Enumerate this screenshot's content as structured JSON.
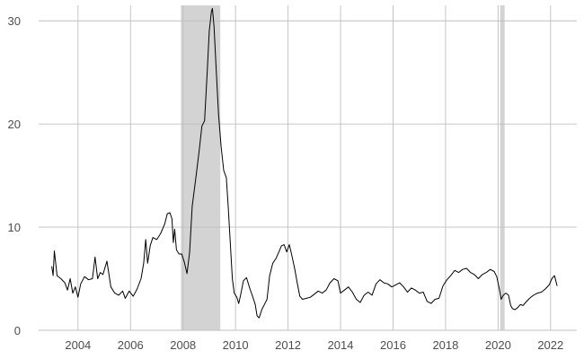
{
  "chart_data": {
    "type": "line",
    "title": "",
    "xlabel": "",
    "ylabel": "",
    "xlim": [
      2002.5,
      2023.0
    ],
    "ylim": [
      0,
      31.5
    ],
    "x_ticks": [
      2004,
      2006,
      2008,
      2010,
      2012,
      2014,
      2016,
      2018,
      2020,
      2022
    ],
    "x_tick_labels": [
      "2004",
      "2006",
      "2008",
      "2010",
      "2012",
      "2014",
      "2016",
      "2018",
      "2020",
      "2022"
    ],
    "y_ticks": [
      0,
      10,
      20,
      30
    ],
    "y_tick_labels": [
      "0",
      "10",
      "20",
      "30"
    ],
    "grid": true,
    "legend": "none",
    "colors": {
      "line": "#000000",
      "shading": "#d3d3d3",
      "grid": "#bfbfbf"
    },
    "shaded_periods": [
      {
        "start": 2007.92,
        "end": 2009.42
      },
      {
        "start": 2020.08,
        "end": 2020.25
      }
    ],
    "series": [
      {
        "values": [
          [
            2003.0,
            6.2
          ],
          [
            2003.05,
            5.3
          ],
          [
            2003.1,
            7.7
          ],
          [
            2003.2,
            5.3
          ],
          [
            2003.35,
            5.0
          ],
          [
            2003.5,
            4.6
          ],
          [
            2003.6,
            3.9
          ],
          [
            2003.7,
            5.0
          ],
          [
            2003.8,
            3.6
          ],
          [
            2003.9,
            4.2
          ],
          [
            2004.0,
            3.2
          ],
          [
            2004.1,
            4.5
          ],
          [
            2004.25,
            5.2
          ],
          [
            2004.4,
            4.9
          ],
          [
            2004.55,
            5.0
          ],
          [
            2004.65,
            7.1
          ],
          [
            2004.75,
            5.0
          ],
          [
            2004.85,
            5.6
          ],
          [
            2004.95,
            5.4
          ],
          [
            2005.1,
            6.7
          ],
          [
            2005.25,
            4.2
          ],
          [
            2005.4,
            3.6
          ],
          [
            2005.55,
            3.4
          ],
          [
            2005.7,
            3.8
          ],
          [
            2005.8,
            3.1
          ],
          [
            2005.95,
            3.8
          ],
          [
            2006.1,
            3.3
          ],
          [
            2006.25,
            4.0
          ],
          [
            2006.4,
            5.0
          ],
          [
            2006.5,
            6.5
          ],
          [
            2006.58,
            8.8
          ],
          [
            2006.65,
            6.5
          ],
          [
            2006.75,
            8.2
          ],
          [
            2006.85,
            9.0
          ],
          [
            2007.0,
            8.8
          ],
          [
            2007.15,
            9.4
          ],
          [
            2007.3,
            10.3
          ],
          [
            2007.4,
            11.3
          ],
          [
            2007.5,
            11.4
          ],
          [
            2007.58,
            10.8
          ],
          [
            2007.63,
            8.5
          ],
          [
            2007.68,
            9.8
          ],
          [
            2007.75,
            7.8
          ],
          [
            2007.85,
            7.4
          ],
          [
            2007.95,
            7.4
          ],
          [
            2008.05,
            6.6
          ],
          [
            2008.15,
            5.5
          ],
          [
            2008.25,
            7.5
          ],
          [
            2008.35,
            12.0
          ],
          [
            2008.5,
            15.0
          ],
          [
            2008.62,
            17.5
          ],
          [
            2008.72,
            19.8
          ],
          [
            2008.82,
            20.3
          ],
          [
            2008.92,
            25.0
          ],
          [
            2009.0,
            29.0
          ],
          [
            2009.08,
            30.9
          ],
          [
            2009.12,
            31.2
          ],
          [
            2009.18,
            29.5
          ],
          [
            2009.25,
            26.0
          ],
          [
            2009.35,
            21.0
          ],
          [
            2009.45,
            17.8
          ],
          [
            2009.55,
            15.5
          ],
          [
            2009.65,
            14.8
          ],
          [
            2009.72,
            12.0
          ],
          [
            2009.8,
            8.5
          ],
          [
            2009.88,
            5.0
          ],
          [
            2009.95,
            3.6
          ],
          [
            2010.05,
            3.2
          ],
          [
            2010.12,
            2.6
          ],
          [
            2010.2,
            3.5
          ],
          [
            2010.3,
            4.8
          ],
          [
            2010.42,
            5.1
          ],
          [
            2010.55,
            4.0
          ],
          [
            2010.65,
            3.3
          ],
          [
            2010.75,
            2.5
          ],
          [
            2010.82,
            1.4
          ],
          [
            2010.9,
            1.2
          ],
          [
            2011.0,
            2.0
          ],
          [
            2011.1,
            2.5
          ],
          [
            2011.2,
            3.0
          ],
          [
            2011.3,
            5.3
          ],
          [
            2011.42,
            6.5
          ],
          [
            2011.55,
            7.0
          ],
          [
            2011.65,
            7.6
          ],
          [
            2011.75,
            8.2
          ],
          [
            2011.85,
            8.3
          ],
          [
            2011.95,
            7.6
          ],
          [
            2012.05,
            8.3
          ],
          [
            2012.15,
            7.2
          ],
          [
            2012.25,
            6.0
          ],
          [
            2012.35,
            4.6
          ],
          [
            2012.45,
            3.3
          ],
          [
            2012.55,
            3.0
          ],
          [
            2012.7,
            3.1
          ],
          [
            2012.85,
            3.2
          ],
          [
            2013.0,
            3.5
          ],
          [
            2013.15,
            3.8
          ],
          [
            2013.3,
            3.6
          ],
          [
            2013.45,
            3.9
          ],
          [
            2013.6,
            4.6
          ],
          [
            2013.75,
            5.0
          ],
          [
            2013.9,
            4.8
          ],
          [
            2014.0,
            3.6
          ],
          [
            2014.15,
            3.9
          ],
          [
            2014.3,
            4.2
          ],
          [
            2014.45,
            3.7
          ],
          [
            2014.6,
            3.0
          ],
          [
            2014.75,
            2.7
          ],
          [
            2014.9,
            3.4
          ],
          [
            2015.05,
            3.7
          ],
          [
            2015.2,
            3.4
          ],
          [
            2015.35,
            4.5
          ],
          [
            2015.5,
            4.9
          ],
          [
            2015.65,
            4.6
          ],
          [
            2015.8,
            4.5
          ],
          [
            2015.95,
            4.2
          ],
          [
            2016.1,
            4.4
          ],
          [
            2016.25,
            4.6
          ],
          [
            2016.4,
            4.2
          ],
          [
            2016.55,
            3.7
          ],
          [
            2016.7,
            4.1
          ],
          [
            2016.85,
            3.9
          ],
          [
            2017.0,
            3.6
          ],
          [
            2017.15,
            3.7
          ],
          [
            2017.3,
            2.8
          ],
          [
            2017.45,
            2.6
          ],
          [
            2017.6,
            3.0
          ],
          [
            2017.75,
            3.1
          ],
          [
            2017.9,
            4.3
          ],
          [
            2018.05,
            4.9
          ],
          [
            2018.2,
            5.3
          ],
          [
            2018.35,
            5.8
          ],
          [
            2018.5,
            5.6
          ],
          [
            2018.65,
            5.9
          ],
          [
            2018.8,
            6.0
          ],
          [
            2018.95,
            5.6
          ],
          [
            2019.1,
            5.4
          ],
          [
            2019.25,
            5.0
          ],
          [
            2019.4,
            5.4
          ],
          [
            2019.55,
            5.6
          ],
          [
            2019.7,
            5.9
          ],
          [
            2019.85,
            5.7
          ],
          [
            2019.95,
            5.2
          ],
          [
            2020.05,
            4.0
          ],
          [
            2020.12,
            3.0
          ],
          [
            2020.2,
            3.4
          ],
          [
            2020.3,
            3.6
          ],
          [
            2020.4,
            3.4
          ],
          [
            2020.48,
            2.4
          ],
          [
            2020.55,
            2.1
          ],
          [
            2020.65,
            2.0
          ],
          [
            2020.75,
            2.2
          ],
          [
            2020.85,
            2.5
          ],
          [
            2020.95,
            2.4
          ],
          [
            2021.05,
            2.7
          ],
          [
            2021.2,
            3.1
          ],
          [
            2021.35,
            3.4
          ],
          [
            2021.5,
            3.6
          ],
          [
            2021.65,
            3.7
          ],
          [
            2021.8,
            4.0
          ],
          [
            2021.95,
            4.4
          ],
          [
            2022.05,
            5.0
          ],
          [
            2022.15,
            5.3
          ],
          [
            2022.2,
            4.8
          ],
          [
            2022.25,
            4.3
          ]
        ]
      }
    ]
  }
}
